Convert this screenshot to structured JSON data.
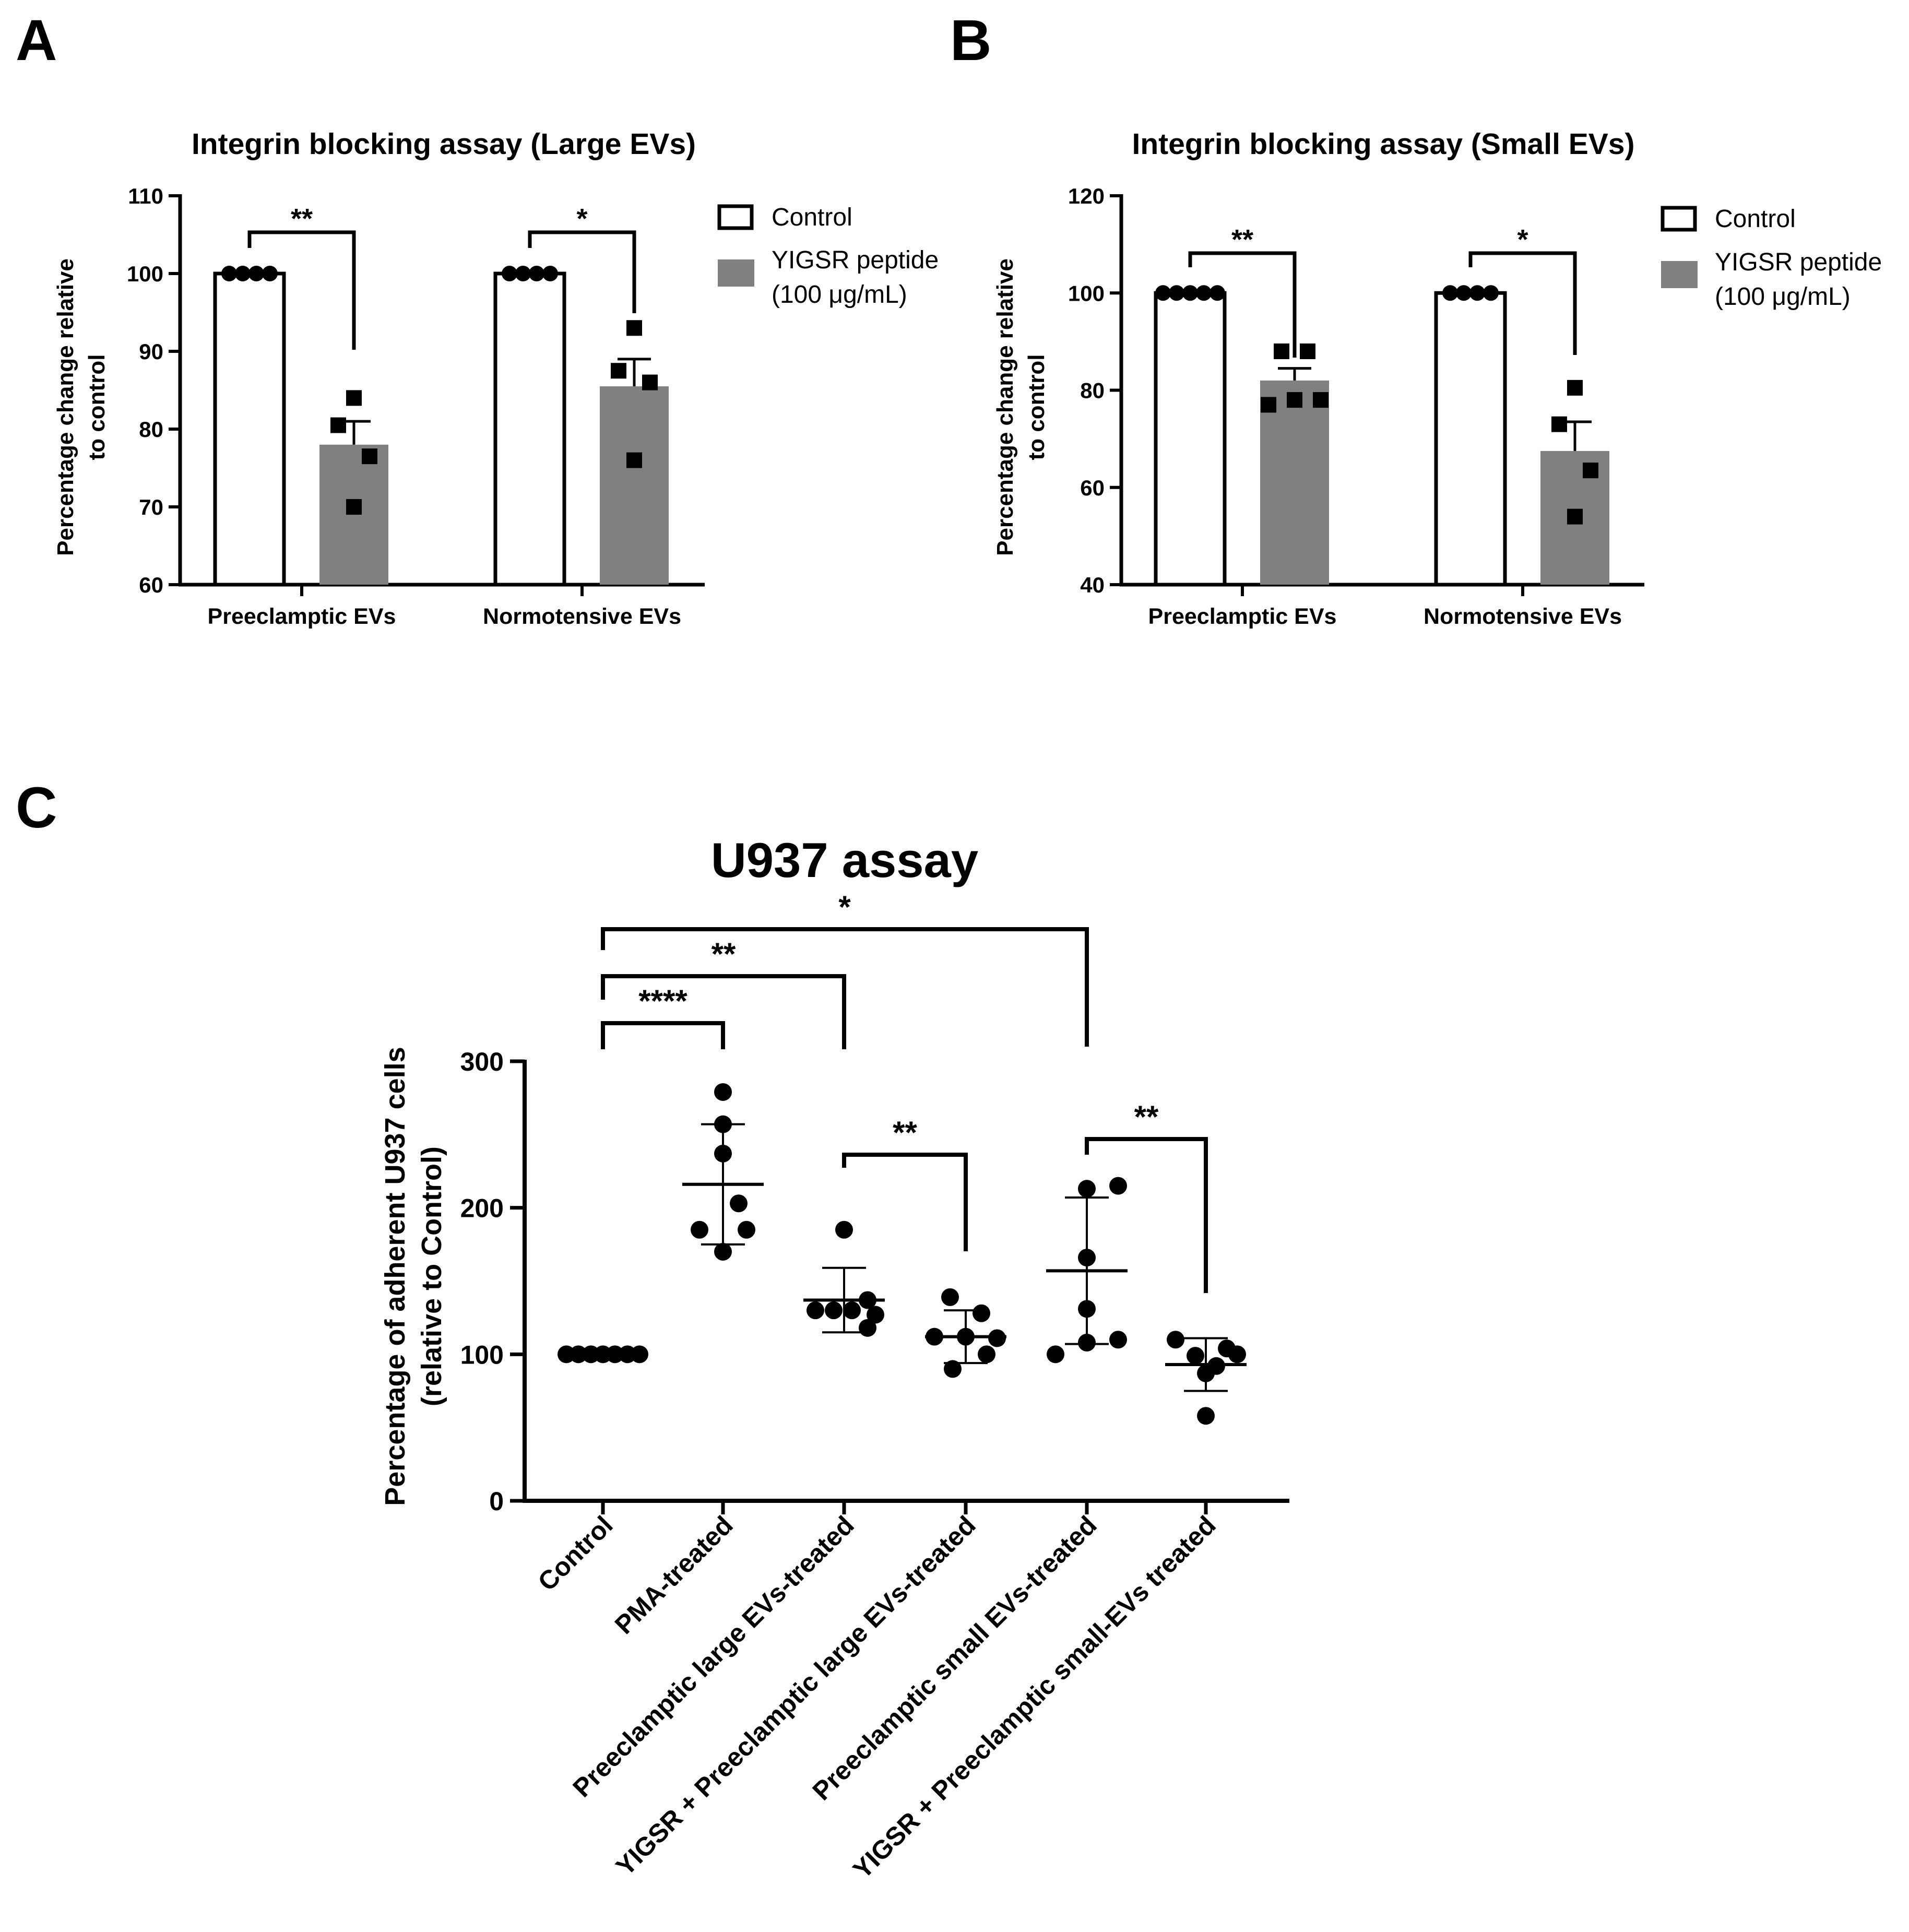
{
  "panel_labels": {
    "a": "A",
    "b": "B",
    "c": "C"
  },
  "colors": {
    "control_fill": "#ffffff",
    "yigsr_fill": "#808080",
    "ink": "#000000"
  },
  "legend": {
    "control": "Control",
    "yigsr_line1": "YIGSR peptide",
    "yigsr_line2": "(100 μg/mL)"
  },
  "chart_data": [
    {
      "panel": "A",
      "type": "bar",
      "title": "Integrin blocking assay (Large EVs)",
      "ylabel_line1": "Percentage change relative",
      "ylabel_line2": "to control",
      "xlabel": "",
      "ylim": [
        60,
        110
      ],
      "yticks": [
        60,
        70,
        80,
        90,
        100,
        110
      ],
      "categories": [
        "Preeclamptic EVs",
        "Normotensive EVs"
      ],
      "legend_position": "right",
      "series": [
        {
          "name": "Control",
          "values": [
            100,
            100
          ],
          "errors": [
            0,
            0
          ],
          "points": [
            [
              100,
              100,
              100,
              100
            ],
            [
              100,
              100,
              100,
              100
            ]
          ]
        },
        {
          "name": "YIGSR peptide (100 μg/mL)",
          "values": [
            78,
            85.5
          ],
          "errors": [
            3,
            3.5
          ],
          "points": [
            [
              84,
              80.5,
              76.5,
              70
            ],
            [
              93,
              87.5,
              86,
              76
            ]
          ]
        }
      ],
      "significance": [
        "**",
        "*"
      ]
    },
    {
      "panel": "B",
      "type": "bar",
      "title": "Integrin blocking assay (Small EVs)",
      "ylabel_line1": "Percentage change relative",
      "ylabel_line2": "to control",
      "xlabel": "",
      "ylim": [
        40,
        120
      ],
      "yticks": [
        40,
        60,
        80,
        100,
        120
      ],
      "categories": [
        "Preeclamptic EVs",
        "Normotensive EVs"
      ],
      "legend_position": "right",
      "series": [
        {
          "name": "Control",
          "values": [
            100,
            100
          ],
          "errors": [
            0,
            0
          ],
          "points": [
            [
              100,
              100,
              100,
              100,
              100
            ],
            [
              100,
              100,
              100,
              100
            ]
          ]
        },
        {
          "name": "YIGSR peptide (100 μg/mL)",
          "values": [
            82,
            67.5
          ],
          "errors": [
            2.5,
            6
          ],
          "points": [
            [
              88,
              88,
              77,
              78,
              78
            ],
            [
              80.5,
              73,
              63.5,
              54
            ]
          ]
        }
      ],
      "significance": [
        "**",
        "*"
      ]
    },
    {
      "panel": "C",
      "type": "scatter",
      "title": "U937 assay",
      "ylabel_line1": "Percentage of adherent U937 cells",
      "ylabel_line2": "(relative to Control)",
      "xlabel": "",
      "ylim": [
        0,
        300
      ],
      "yticks": [
        0,
        100,
        200,
        300
      ],
      "categories": [
        "Control",
        "PMA-treated",
        "Preeclamptic large EVs-treated",
        "YIGSR + Preeclamptic large EVs-treated",
        "Preeclamptic small EVs-treated",
        "YIGSR + Preeclamptic small-EVs treated"
      ],
      "groups": [
        {
          "mean": 100,
          "sd": 0,
          "points": [
            100,
            100,
            100,
            100,
            100,
            100,
            100
          ]
        },
        {
          "mean": 216,
          "sd": 41,
          "points": [
            279,
            257,
            237,
            203,
            185,
            185,
            170
          ]
        },
        {
          "mean": 137,
          "sd": 22,
          "points": [
            185,
            137,
            130,
            130,
            130,
            127,
            118
          ]
        },
        {
          "mean": 112,
          "sd": 18,
          "points": [
            139,
            128,
            112,
            112,
            111,
            100,
            90
          ]
        },
        {
          "mean": 157,
          "sd": 50,
          "points": [
            213,
            215,
            166,
            131,
            110,
            100,
            108
          ]
        },
        {
          "mean": 93,
          "sd": 18,
          "points": [
            110,
            104,
            99,
            100,
            92,
            87,
            58
          ]
        }
      ],
      "significance": [
        {
          "from": 0,
          "to": 1,
          "label": "****"
        },
        {
          "from": 0,
          "to": 2,
          "label": "**"
        },
        {
          "from": 0,
          "to": 4,
          "label": "*"
        },
        {
          "from": 2,
          "to": 3,
          "label": "**"
        },
        {
          "from": 4,
          "to": 5,
          "label": "**"
        }
      ]
    }
  ]
}
